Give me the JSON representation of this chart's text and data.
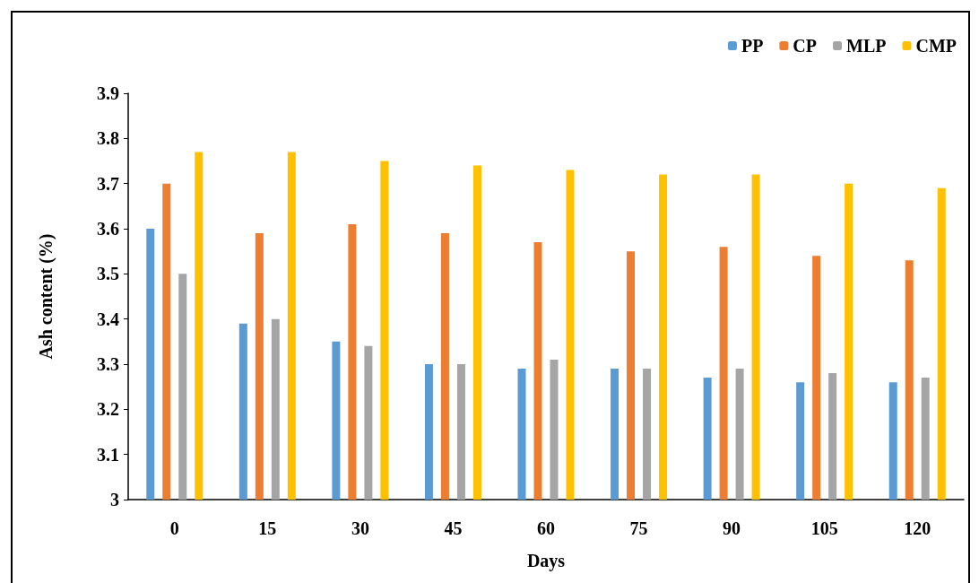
{
  "chart_data": {
    "type": "bar",
    "xlabel": "Days",
    "ylabel": "Ash content (%)",
    "categories": [
      "0",
      "15",
      "30",
      "45",
      "60",
      "75",
      "90",
      "105",
      "120"
    ],
    "series": [
      {
        "name": "PP",
        "color": "#5b9bd5",
        "values": [
          3.6,
          3.39,
          3.35,
          3.3,
          3.29,
          3.29,
          3.27,
          3.26,
          3.26
        ]
      },
      {
        "name": "CP",
        "color": "#ed7d31",
        "values": [
          3.7,
          3.59,
          3.61,
          3.59,
          3.57,
          3.55,
          3.56,
          3.54,
          3.53
        ]
      },
      {
        "name": "MLP",
        "color": "#a5a5a5",
        "values": [
          3.5,
          3.4,
          3.34,
          3.3,
          3.31,
          3.29,
          3.29,
          3.28,
          3.27
        ]
      },
      {
        "name": "CMP",
        "color": "#ffc000",
        "values": [
          3.77,
          3.77,
          3.75,
          3.74,
          3.73,
          3.72,
          3.72,
          3.7,
          3.69
        ]
      }
    ],
    "ylim": [
      3,
      3.9
    ],
    "yticks": [
      3,
      3.1,
      3.2,
      3.3,
      3.4,
      3.5,
      3.6,
      3.7,
      3.8,
      3.9
    ],
    "grid": false,
    "legend": "top right"
  }
}
